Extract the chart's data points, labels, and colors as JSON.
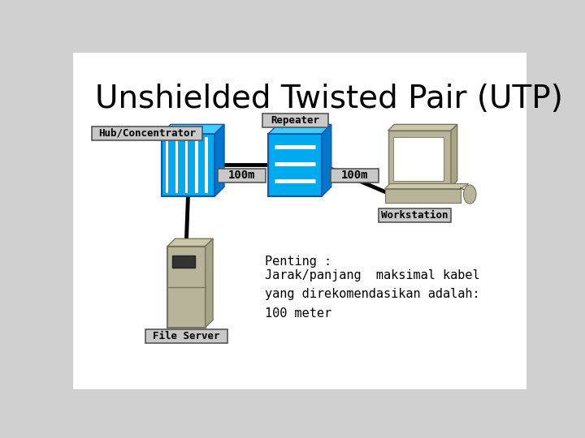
{
  "title": "Unshielded Twisted Pair (UTP)",
  "title_fontsize": 28,
  "bg_color": "#d0d0d0",
  "slide_bg": "#ffffff",
  "text_color": "#000000",
  "penting_label": "Penting :",
  "penting_text": "Jarak/panjang  maksimal kabel\nyang direkomendasikan adalah:\n100 meter",
  "label_hub": "Hub/Concentrator",
  "label_repeater": "Repeater",
  "label_workstation": "Workstation",
  "label_fileserver": "File Server",
  "label_100m_left": "100m",
  "label_100m_right": "100m",
  "hub_color": "#00aaee",
  "repeater_color": "#00aaee",
  "hub_stripe_color": "#ffffff",
  "label_box_bg": "#c8c8c8",
  "label_box_edge": "#555555",
  "ws_body_color": "#b8b49a",
  "fs_body_color": "#b8b49a"
}
